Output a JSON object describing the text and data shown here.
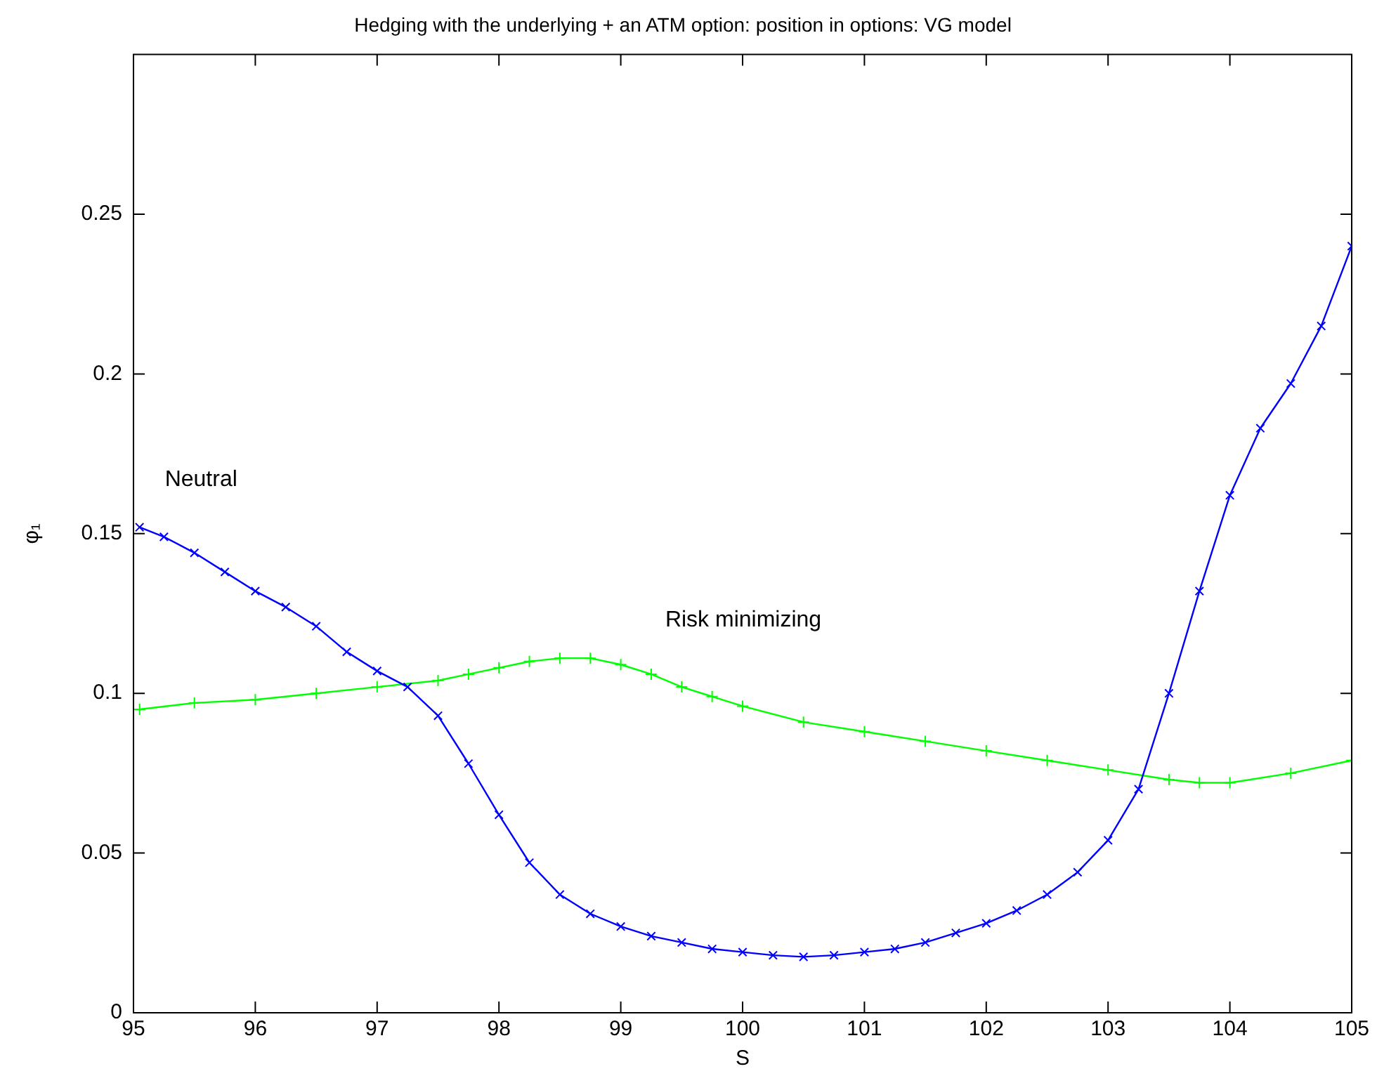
{
  "chart_data": {
    "type": "line",
    "title": "Hedging with the underlying + an ATM option: position in options: VG model",
    "xlabel": "S",
    "ylabel": "φ₁",
    "xlim": [
      95,
      105
    ],
    "xticks": [
      95,
      96,
      97,
      98,
      99,
      100,
      101,
      102,
      103,
      104,
      105
    ],
    "ylim": [
      0,
      0.3
    ],
    "yticks": [
      0,
      0.05,
      0.1,
      0.15,
      0.2,
      0.25
    ],
    "grid": false,
    "legend": false,
    "line_style": "solid",
    "series": [
      {
        "name": "Neutral",
        "color": "#0000ff",
        "marker": "cross",
        "x": [
          95.05,
          95.25,
          95.5,
          95.75,
          96,
          96.25,
          96.5,
          96.75,
          97,
          97.25,
          97.5,
          97.75,
          98,
          98.25,
          98.5,
          98.75,
          99,
          99.25,
          99.5,
          99.75,
          100,
          100.25,
          100.5,
          100.75,
          101,
          101.25,
          101.5,
          101.75,
          102,
          102.25,
          102.5,
          102.75,
          103,
          103.25,
          103.5,
          103.75,
          104,
          104.25,
          104.5,
          104.75,
          105
        ],
        "values": [
          0.152,
          0.149,
          0.144,
          0.138,
          0.132,
          0.127,
          0.121,
          0.113,
          0.107,
          0.102,
          0.093,
          0.078,
          0.062,
          0.047,
          0.037,
          0.031,
          0.027,
          0.024,
          0.022,
          0.02,
          0.019,
          0.018,
          0.0175,
          0.018,
          0.019,
          0.02,
          0.022,
          0.025,
          0.028,
          0.032,
          0.037,
          0.044,
          0.054,
          0.07,
          0.1,
          0.132,
          0.162,
          0.183,
          0.197,
          0.215,
          0.24
        ]
      },
      {
        "name": "Risk minimizing",
        "color": "#00ff00",
        "marker": "plus",
        "x": [
          95.05,
          95.5,
          96,
          96.5,
          97,
          97.5,
          97.75,
          98,
          98.25,
          98.5,
          98.75,
          99,
          99.25,
          99.5,
          99.75,
          100,
          100.5,
          101,
          101.5,
          102,
          102.5,
          103,
          103.5,
          103.75,
          104,
          104.5,
          105
        ],
        "values": [
          0.095,
          0.097,
          0.098,
          0.1,
          0.102,
          0.104,
          0.106,
          0.108,
          0.11,
          0.111,
          0.111,
          0.109,
          0.106,
          0.102,
          0.099,
          0.096,
          0.091,
          0.088,
          0.085,
          0.082,
          0.079,
          0.076,
          0.073,
          0.072,
          0.072,
          0.075,
          0.079
        ]
      }
    ]
  }
}
